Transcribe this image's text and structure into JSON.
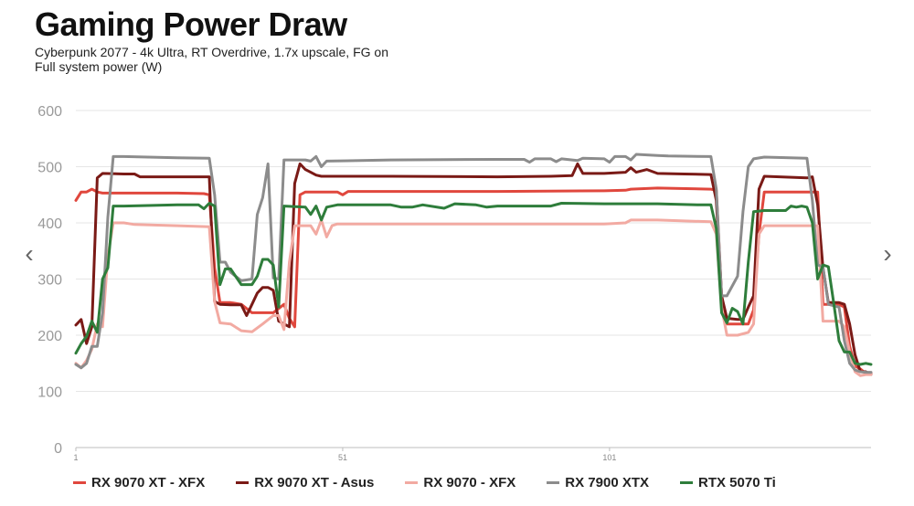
{
  "header": {
    "title": "Gaming Power Draw",
    "subtitle_line1": "Cyberpunk 2077 - 4k Ultra, RT Overdrive, 1.7x upscale, FG on",
    "subtitle_line2": "Full system power (W)"
  },
  "nav": {
    "prev_icon": "‹",
    "next_icon": "›"
  },
  "chart_data": {
    "type": "line",
    "title": "Gaming Power Draw",
    "subtitle": "Cyberpunk 2077 - 4k Ultra, RT Overdrive, 1.7x upscale, FG on",
    "ylabel": "Full system power (W)",
    "xlabel": "",
    "ylim": [
      0,
      600
    ],
    "yticks": [
      0,
      100,
      200,
      300,
      400,
      500,
      600
    ],
    "xticks": [
      "1",
      "51",
      "101"
    ],
    "xlim": [
      1,
      150
    ],
    "grid": true,
    "legend_position": "bottom",
    "series": [
      {
        "name": "RX 9070 XT - XFX",
        "color": "#e0473d",
        "points": [
          [
            1,
            440
          ],
          [
            2,
            455
          ],
          [
            3,
            455
          ],
          [
            4,
            460
          ],
          [
            5,
            455
          ],
          [
            6,
            453
          ],
          [
            10,
            453
          ],
          [
            20,
            453
          ],
          [
            25,
            452
          ],
          [
            26,
            450
          ],
          [
            27,
            320
          ],
          [
            28,
            258
          ],
          [
            30,
            258
          ],
          [
            32,
            255
          ],
          [
            34,
            240
          ],
          [
            36,
            240
          ],
          [
            38,
            240
          ],
          [
            40,
            255
          ],
          [
            41,
            230
          ],
          [
            42,
            215
          ],
          [
            43,
            450
          ],
          [
            44,
            455
          ],
          [
            50,
            455
          ],
          [
            51,
            450
          ],
          [
            52,
            456
          ],
          [
            60,
            456
          ],
          [
            80,
            456
          ],
          [
            100,
            457
          ],
          [
            104,
            458
          ],
          [
            105,
            460
          ],
          [
            110,
            462
          ],
          [
            120,
            460
          ],
          [
            121,
            458
          ],
          [
            122,
            270
          ],
          [
            123,
            220
          ],
          [
            125,
            220
          ],
          [
            127,
            220
          ],
          [
            128,
            245
          ],
          [
            129,
            380
          ],
          [
            130,
            455
          ],
          [
            138,
            455
          ],
          [
            140,
            455
          ],
          [
            141,
            255
          ],
          [
            144,
            255
          ],
          [
            145,
            250
          ],
          [
            146,
            180
          ],
          [
            147,
            145
          ],
          [
            148,
            140
          ],
          [
            149,
            132
          ],
          [
            150,
            132
          ]
        ]
      },
      {
        "name": "RX 9070 XT - Asus",
        "color": "#7a1a16",
        "points": [
          [
            1,
            218
          ],
          [
            2,
            228
          ],
          [
            3,
            185
          ],
          [
            4,
            215
          ],
          [
            5,
            480
          ],
          [
            6,
            488
          ],
          [
            10,
            487
          ],
          [
            12,
            487
          ],
          [
            13,
            482
          ],
          [
            20,
            482
          ],
          [
            26,
            482
          ],
          [
            27,
            260
          ],
          [
            28,
            255
          ],
          [
            30,
            254
          ],
          [
            32,
            254
          ],
          [
            33,
            235
          ],
          [
            34,
            255
          ],
          [
            35,
            275
          ],
          [
            36,
            285
          ],
          [
            37,
            285
          ],
          [
            38,
            280
          ],
          [
            39,
            225
          ],
          [
            40,
            220
          ],
          [
            41,
            215
          ],
          [
            42,
            470
          ],
          [
            43,
            505
          ],
          [
            44,
            495
          ],
          [
            45,
            490
          ],
          [
            46,
            485
          ],
          [
            47,
            483
          ],
          [
            60,
            483
          ],
          [
            80,
            482
          ],
          [
            90,
            483
          ],
          [
            94,
            484
          ],
          [
            95,
            505
          ],
          [
            96,
            488
          ],
          [
            100,
            488
          ],
          [
            104,
            490
          ],
          [
            105,
            498
          ],
          [
            106,
            490
          ],
          [
            108,
            495
          ],
          [
            110,
            488
          ],
          [
            115,
            487
          ],
          [
            120,
            486
          ],
          [
            121,
            440
          ],
          [
            122,
            270
          ],
          [
            123,
            230
          ],
          [
            125,
            228
          ],
          [
            126,
            228
          ],
          [
            127,
            250
          ],
          [
            128,
            270
          ],
          [
            129,
            460
          ],
          [
            130,
            483
          ],
          [
            138,
            480
          ],
          [
            139,
            482
          ],
          [
            140,
            432
          ],
          [
            141,
            320
          ],
          [
            142,
            258
          ],
          [
            144,
            258
          ],
          [
            145,
            255
          ],
          [
            146,
            220
          ],
          [
            147,
            165
          ],
          [
            148,
            135
          ],
          [
            149,
            135
          ],
          [
            150,
            130
          ]
        ]
      },
      {
        "name": "RX 9070 - XFX",
        "color": "#f2aaa2",
        "points": [
          [
            1,
            150
          ],
          [
            2,
            142
          ],
          [
            3,
            155
          ],
          [
            4,
            175
          ],
          [
            5,
            220
          ],
          [
            6,
            215
          ],
          [
            7,
            340
          ],
          [
            8,
            400
          ],
          [
            10,
            400
          ],
          [
            12,
            397
          ],
          [
            20,
            395
          ],
          [
            26,
            393
          ],
          [
            27,
            260
          ],
          [
            28,
            222
          ],
          [
            30,
            220
          ],
          [
            32,
            208
          ],
          [
            34,
            206
          ],
          [
            36,
            220
          ],
          [
            38,
            235
          ],
          [
            39,
            235
          ],
          [
            40,
            210
          ],
          [
            41,
            330
          ],
          [
            42,
            395
          ],
          [
            45,
            395
          ],
          [
            46,
            380
          ],
          [
            47,
            405
          ],
          [
            48,
            375
          ],
          [
            49,
            395
          ],
          [
            50,
            398
          ],
          [
            60,
            398
          ],
          [
            80,
            398
          ],
          [
            100,
            398
          ],
          [
            104,
            400
          ],
          [
            105,
            405
          ],
          [
            110,
            405
          ],
          [
            120,
            402
          ],
          [
            121,
            380
          ],
          [
            122,
            250
          ],
          [
            123,
            200
          ],
          [
            125,
            200
          ],
          [
            127,
            205
          ],
          [
            128,
            220
          ],
          [
            129,
            380
          ],
          [
            130,
            395
          ],
          [
            140,
            395
          ],
          [
            141,
            225
          ],
          [
            144,
            225
          ],
          [
            145,
            215
          ],
          [
            146,
            170
          ],
          [
            147,
            135
          ],
          [
            148,
            128
          ],
          [
            149,
            130
          ],
          [
            150,
            130
          ]
        ]
      },
      {
        "name": "RX 7900 XTX",
        "color": "#8c8c8c",
        "points": [
          [
            1,
            148
          ],
          [
            2,
            142
          ],
          [
            3,
            150
          ],
          [
            4,
            180
          ],
          [
            5,
            180
          ],
          [
            6,
            240
          ],
          [
            7,
            410
          ],
          [
            8,
            518
          ],
          [
            10,
            518
          ],
          [
            20,
            516
          ],
          [
            26,
            515
          ],
          [
            27,
            450
          ],
          [
            28,
            330
          ],
          [
            29,
            330
          ],
          [
            30,
            312
          ],
          [
            32,
            297
          ],
          [
            34,
            300
          ],
          [
            35,
            415
          ],
          [
            36,
            445
          ],
          [
            37,
            505
          ],
          [
            38,
            302
          ],
          [
            39,
            300
          ],
          [
            40,
            512
          ],
          [
            44,
            512
          ],
          [
            45,
            510
          ],
          [
            46,
            518
          ],
          [
            47,
            500
          ],
          [
            48,
            510
          ],
          [
            60,
            512
          ],
          [
            80,
            513
          ],
          [
            85,
            513
          ],
          [
            86,
            508
          ],
          [
            87,
            514
          ],
          [
            90,
            514
          ],
          [
            91,
            509
          ],
          [
            92,
            514
          ],
          [
            95,
            511
          ],
          [
            96,
            515
          ],
          [
            100,
            514
          ],
          [
            101,
            508
          ],
          [
            102,
            518
          ],
          [
            104,
            518
          ],
          [
            105,
            512
          ],
          [
            106,
            522
          ],
          [
            110,
            520
          ],
          [
            112,
            519
          ],
          [
            120,
            518
          ],
          [
            121,
            460
          ],
          [
            122,
            270
          ],
          [
            123,
            270
          ],
          [
            125,
            305
          ],
          [
            126,
            420
          ],
          [
            127,
            500
          ],
          [
            128,
            514
          ],
          [
            130,
            517
          ],
          [
            138,
            515
          ],
          [
            139,
            440
          ],
          [
            140,
            325
          ],
          [
            141,
            322
          ],
          [
            142,
            255
          ],
          [
            144,
            250
          ],
          [
            145,
            190
          ],
          [
            146,
            150
          ],
          [
            147,
            138
          ],
          [
            148,
            135
          ],
          [
            149,
            134
          ],
          [
            150,
            134
          ]
        ]
      },
      {
        "name": "RTX 5070 Ti",
        "color": "#2e7d3b",
        "points": [
          [
            1,
            168
          ],
          [
            2,
            185
          ],
          [
            3,
            198
          ],
          [
            4,
            225
          ],
          [
            5,
            205
          ],
          [
            6,
            300
          ],
          [
            7,
            320
          ],
          [
            8,
            430
          ],
          [
            10,
            430
          ],
          [
            20,
            432
          ],
          [
            24,
            432
          ],
          [
            25,
            425
          ],
          [
            26,
            435
          ],
          [
            27,
            430
          ],
          [
            28,
            290
          ],
          [
            29,
            318
          ],
          [
            30,
            318
          ],
          [
            32,
            290
          ],
          [
            34,
            290
          ],
          [
            35,
            305
          ],
          [
            36,
            335
          ],
          [
            37,
            335
          ],
          [
            38,
            325
          ],
          [
            39,
            250
          ],
          [
            40,
            430
          ],
          [
            44,
            428
          ],
          [
            45,
            415
          ],
          [
            46,
            430
          ],
          [
            47,
            405
          ],
          [
            48,
            428
          ],
          [
            50,
            432
          ],
          [
            60,
            432
          ],
          [
            62,
            428
          ],
          [
            64,
            428
          ],
          [
            66,
            432
          ],
          [
            70,
            426
          ],
          [
            72,
            434
          ],
          [
            76,
            432
          ],
          [
            78,
            428
          ],
          [
            80,
            430
          ],
          [
            90,
            430
          ],
          [
            92,
            435
          ],
          [
            100,
            434
          ],
          [
            110,
            434
          ],
          [
            118,
            432
          ],
          [
            120,
            432
          ],
          [
            121,
            390
          ],
          [
            122,
            240
          ],
          [
            123,
            222
          ],
          [
            124,
            248
          ],
          [
            125,
            242
          ],
          [
            126,
            220
          ],
          [
            127,
            330
          ],
          [
            128,
            420
          ],
          [
            130,
            422
          ],
          [
            134,
            422
          ],
          [
            135,
            430
          ],
          [
            136,
            428
          ],
          [
            137,
            430
          ],
          [
            138,
            428
          ],
          [
            139,
            400
          ],
          [
            140,
            300
          ],
          [
            141,
            325
          ],
          [
            142,
            322
          ],
          [
            143,
            258
          ],
          [
            144,
            190
          ],
          [
            145,
            170
          ],
          [
            146,
            170
          ],
          [
            147,
            150
          ],
          [
            148,
            148
          ],
          [
            149,
            150
          ],
          [
            150,
            148
          ]
        ]
      }
    ]
  }
}
